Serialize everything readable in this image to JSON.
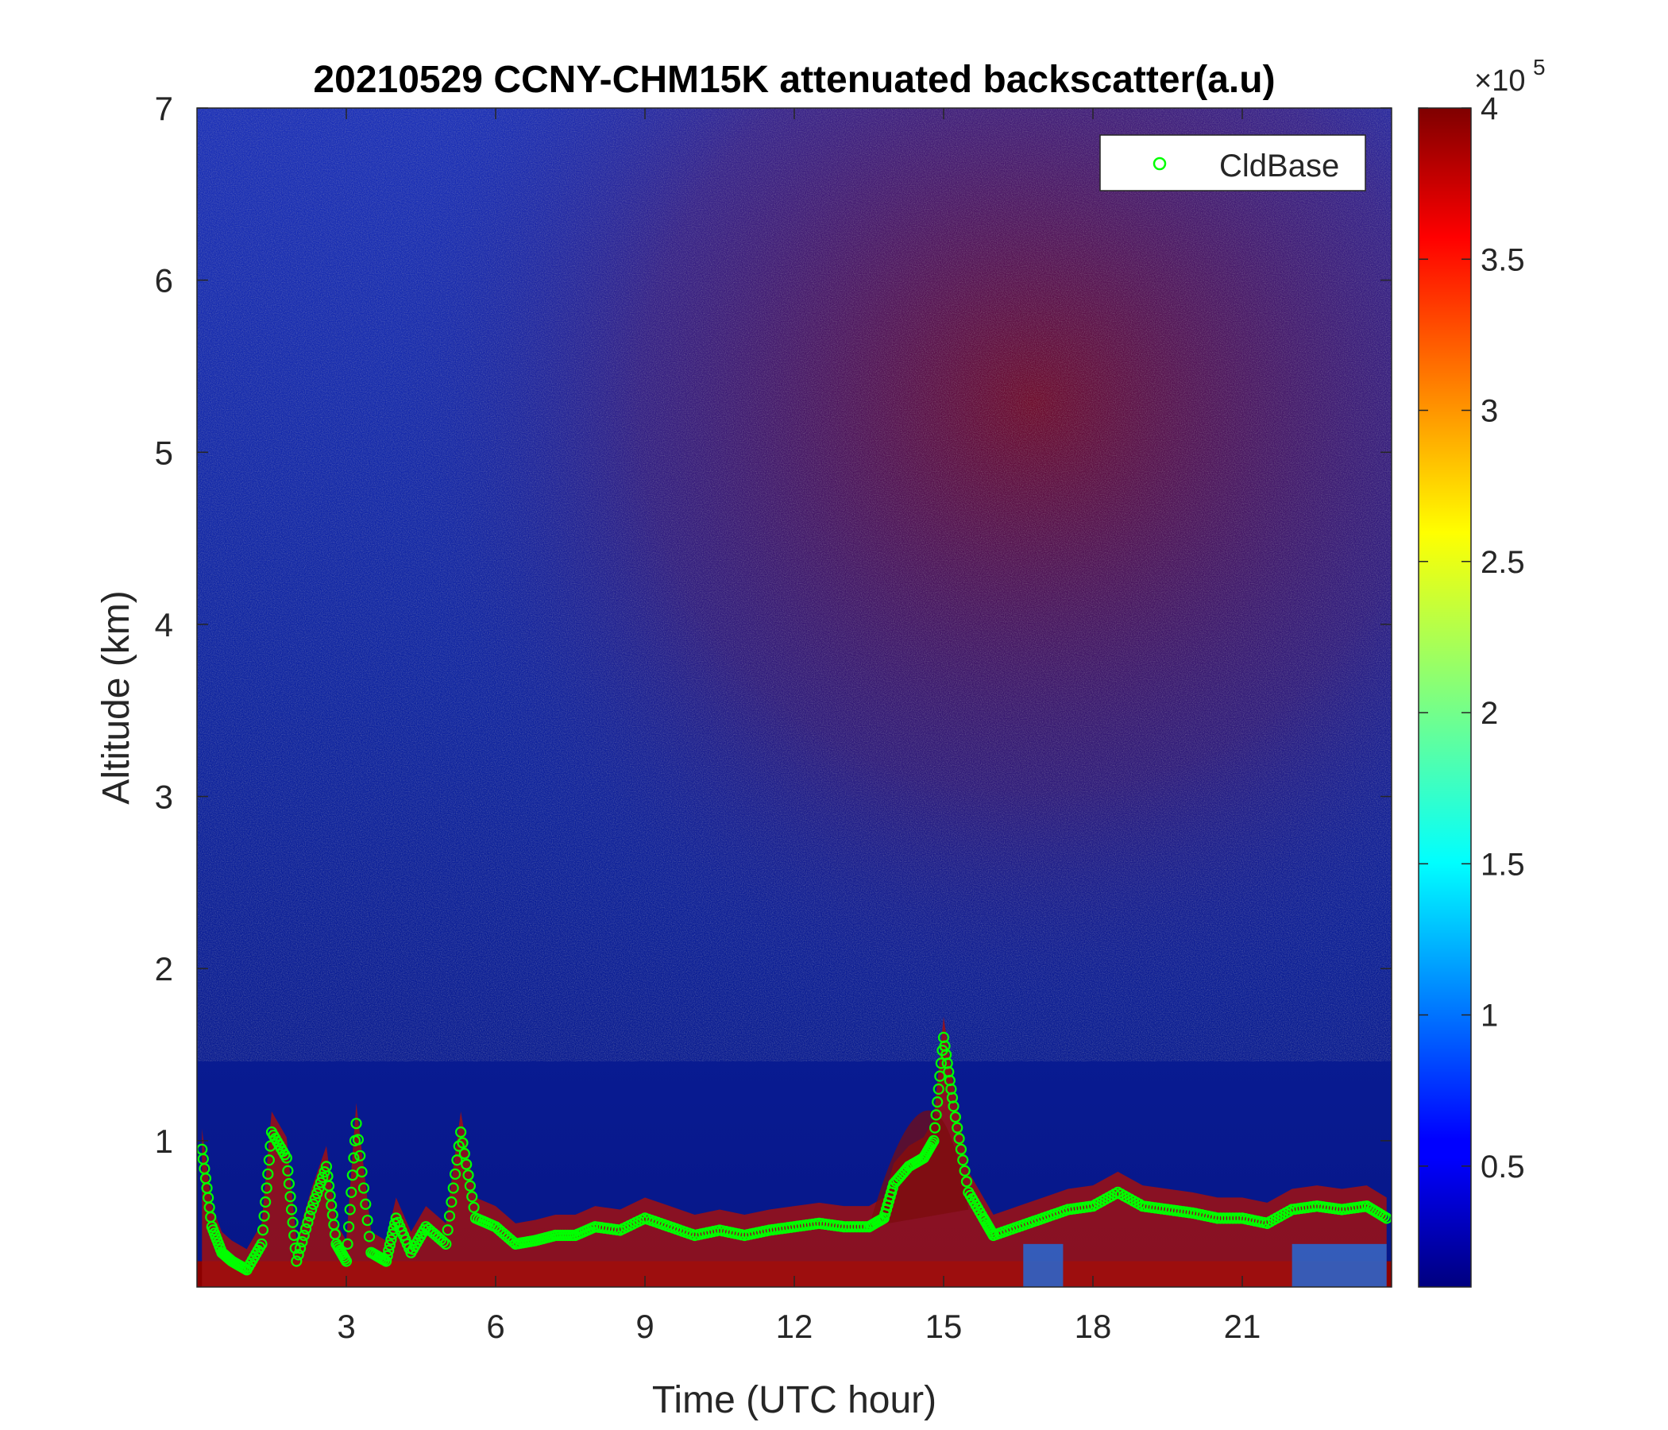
{
  "chart_data": {
    "type": "heatmap",
    "title": "20210529 CCNY-CHM15K attenuated backscatter(a.u)",
    "xlabel": "Time (UTC hour)",
    "ylabel": "Altitude (km)",
    "xlim": [
      0,
      24
    ],
    "ylim": [
      0.15,
      7
    ],
    "x_ticks": [
      3,
      6,
      9,
      12,
      15,
      18,
      21
    ],
    "x_tick_labels": [
      "3",
      "6",
      "9",
      "12",
      "15",
      "18",
      "21"
    ],
    "y_ticks": [
      1,
      2,
      3,
      4,
      5,
      6,
      7
    ],
    "y_tick_labels": [
      "1",
      "2",
      "3",
      "4",
      "5",
      "6",
      "7"
    ],
    "colormap": "jet",
    "colorbar": {
      "clim": [
        10000,
        400000
      ],
      "ticks": [
        50000,
        100000,
        150000,
        200000,
        250000,
        300000,
        350000,
        400000
      ],
      "tick_labels": [
        "0.5",
        "1",
        "1.5",
        "2",
        "2.5",
        "3",
        "3.5",
        "4"
      ],
      "exponent_label": "×10",
      "exponent_power": "5"
    },
    "legend": {
      "entries": [
        "CldBase"
      ],
      "location": "top-right",
      "marker": "circle",
      "color": "#00ff00"
    },
    "features": [
      {
        "description_ref": "near-surface layer saturated",
        "x_range": [
          0,
          24
        ],
        "altitude_top_km": 0.3
      },
      {
        "description_ref": "aerosol plume",
        "x_range": [
          13.5,
          15.5
        ],
        "altitude_top_km": 1.8
      },
      {
        "description_ref": "bright upper noise",
        "x_range": [
          10,
          24
        ],
        "altitude_range_km": [
          2,
          7
        ]
      }
    ],
    "series": [
      {
        "name": "CldBase",
        "type": "scatter",
        "x": [
          0.1,
          0.3,
          0.5,
          0.7,
          1.0,
          1.3,
          1.5,
          1.8,
          2.0,
          2.3,
          2.6,
          2.8,
          3.0,
          3.2,
          3.5,
          3.8,
          4.0,
          4.3,
          4.6,
          5.0,
          5.3,
          5.6,
          6.0,
          6.4,
          6.8,
          7.2,
          7.6,
          8.0,
          8.5,
          9.0,
          9.5,
          10.0,
          10.5,
          11.0,
          11.5,
          12.0,
          12.5,
          13.0,
          13.5,
          13.8,
          14.0,
          14.3,
          14.6,
          14.8,
          15.0,
          15.2,
          15.5,
          15.8,
          16.0,
          16.5,
          17.0,
          17.5,
          18.0,
          18.5,
          19.0,
          19.5,
          20.0,
          20.5,
          21.0,
          21.5,
          22.0,
          22.5,
          23.0,
          23.5,
          23.9
        ],
        "y": [
          0.95,
          0.5,
          0.35,
          0.3,
          0.25,
          0.4,
          1.05,
          0.9,
          0.3,
          0.6,
          0.85,
          0.4,
          0.3,
          1.1,
          0.35,
          0.3,
          0.55,
          0.35,
          0.5,
          0.4,
          1.05,
          0.55,
          0.5,
          0.4,
          0.42,
          0.45,
          0.45,
          0.5,
          0.48,
          0.55,
          0.5,
          0.45,
          0.48,
          0.45,
          0.48,
          0.5,
          0.52,
          0.5,
          0.5,
          0.55,
          0.75,
          0.85,
          0.9,
          1.0,
          1.6,
          1.2,
          0.7,
          0.55,
          0.45,
          0.5,
          0.55,
          0.6,
          0.62,
          0.7,
          0.62,
          0.6,
          0.58,
          0.55,
          0.55,
          0.52,
          0.6,
          0.62,
          0.6,
          0.62,
          0.55
        ]
      }
    ]
  }
}
